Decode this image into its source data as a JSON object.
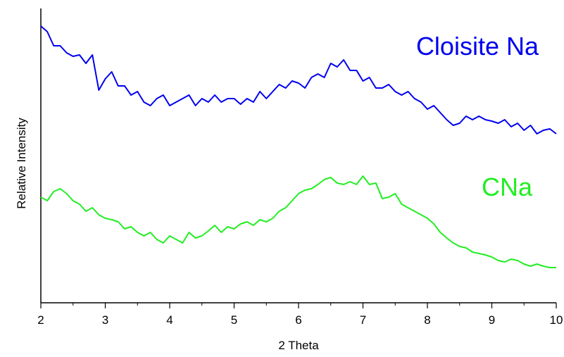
{
  "chart_data": {
    "type": "line",
    "xlabel": "2 Theta",
    "ylabel": "Relative Intensity",
    "x": [
      2.0,
      2.1,
      2.2,
      2.3,
      2.4,
      2.5,
      2.6,
      2.7,
      2.8,
      2.9,
      3.0,
      3.1,
      3.2,
      3.3,
      3.4,
      3.5,
      3.6,
      3.7,
      3.8,
      3.9,
      4.0,
      4.1,
      4.2,
      4.3,
      4.4,
      4.5,
      4.6,
      4.7,
      4.8,
      4.9,
      5.0,
      5.1,
      5.2,
      5.3,
      5.4,
      5.5,
      5.6,
      5.7,
      5.8,
      5.9,
      6.0,
      6.1,
      6.2,
      6.3,
      6.4,
      6.5,
      6.6,
      6.7,
      6.8,
      6.9,
      7.0,
      7.1,
      7.2,
      7.3,
      7.4,
      7.5,
      7.6,
      7.7,
      7.8,
      7.9,
      8.0,
      8.1,
      8.2,
      8.3,
      8.4,
      8.5,
      8.6,
      8.7,
      8.8,
      8.9,
      9.0,
      9.1,
      9.2,
      9.3,
      9.4,
      9.5,
      9.6,
      9.7,
      9.8,
      9.9,
      10.0
    ],
    "series": [
      {
        "name": "Cloisite Na",
        "color": "#0000ee",
        "values": [
          393,
          385,
          365,
          365,
          355,
          350,
          352,
          340,
          352,
          302,
          318,
          328,
          308,
          308,
          295,
          300,
          285,
          280,
          290,
          295,
          280,
          285,
          290,
          295,
          280,
          290,
          285,
          295,
          285,
          290,
          290,
          282,
          290,
          285,
          300,
          290,
          300,
          310,
          305,
          315,
          312,
          305,
          320,
          325,
          320,
          340,
          335,
          345,
          330,
          330,
          315,
          320,
          305,
          305,
          310,
          300,
          295,
          300,
          290,
          285,
          275,
          280,
          270,
          260,
          252,
          255,
          265,
          260,
          265,
          260,
          258,
          255,
          260,
          250,
          255,
          245,
          252,
          240,
          245,
          247,
          240
        ]
      },
      {
        "name": "CNa",
        "color": "#22ee22",
        "values": [
          150,
          145,
          158,
          162,
          155,
          145,
          140,
          130,
          135,
          125,
          120,
          118,
          115,
          105,
          108,
          100,
          95,
          100,
          90,
          85,
          95,
          90,
          85,
          100,
          92,
          95,
          102,
          110,
          100,
          108,
          105,
          112,
          115,
          110,
          118,
          115,
          120,
          130,
          135,
          145,
          155,
          160,
          162,
          168,
          175,
          178,
          170,
          168,
          172,
          168,
          180,
          168,
          170,
          148,
          150,
          155,
          140,
          135,
          130,
          125,
          120,
          112,
          100,
          92,
          85,
          80,
          78,
          72,
          70,
          68,
          65,
          60,
          58,
          62,
          60,
          55,
          52,
          55,
          52,
          50,
          50
        ]
      }
    ],
    "xlim": [
      2,
      10
    ],
    "xticks": [
      2,
      3,
      4,
      5,
      6,
      7,
      8,
      9,
      10
    ],
    "ylim": [
      0,
      418
    ]
  }
}
